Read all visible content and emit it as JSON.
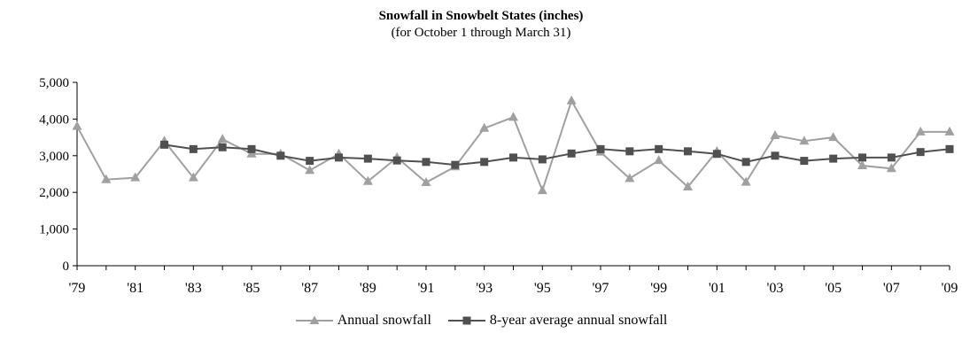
{
  "chart_data": {
    "type": "line",
    "title": "Snowfall in Snowbelt States (inches)",
    "subtitle": "(for October 1 through March 31)",
    "xlabel": "",
    "ylabel": "",
    "x": [
      1979,
      1980,
      1981,
      1982,
      1983,
      1984,
      1985,
      1986,
      1987,
      1988,
      1989,
      1990,
      1991,
      1992,
      1993,
      1994,
      1995,
      1996,
      1997,
      1998,
      1999,
      2000,
      2001,
      2002,
      2003,
      2004,
      2005,
      2006,
      2007,
      2008,
      2009
    ],
    "x_tick_labels": [
      "'79",
      "'81",
      "'83",
      "'85",
      "'87",
      "'89",
      "'91",
      "'93",
      "'95",
      "'97",
      "'99",
      "'01",
      "'03",
      "'05",
      "'07",
      "'09"
    ],
    "y_tick_labels": [
      "0",
      "1,000",
      "2,000",
      "3,000",
      "4,000",
      "5,000"
    ],
    "y_ticks": [
      0,
      1000,
      2000,
      3000,
      4000,
      5000
    ],
    "xlim": [
      1979,
      2009
    ],
    "ylim": [
      0,
      5000
    ],
    "grid": false,
    "legend_position": "bottom-center",
    "series": [
      {
        "name": "Annual snowfall",
        "marker": "triangle",
        "color": "#a0a0a0",
        "values": [
          3800,
          2350,
          2400,
          3400,
          2400,
          3450,
          3050,
          3050,
          2600,
          3050,
          2300,
          2950,
          2270,
          2700,
          3750,
          4050,
          2050,
          4500,
          3100,
          2380,
          2870,
          2150,
          3120,
          2280,
          3550,
          3400,
          3500,
          2730,
          2650,
          3650,
          3650
        ]
      },
      {
        "name": "8-year average annual snowfall",
        "marker": "square",
        "color": "#505050",
        "values": [
          null,
          null,
          null,
          3300,
          3180,
          3230,
          3180,
          3000,
          2860,
          2950,
          2920,
          2870,
          2830,
          2750,
          2830,
          2950,
          2900,
          3060,
          3180,
          3120,
          3180,
          3120,
          3050,
          2830,
          3000,
          2860,
          2920,
          2950,
          2950,
          3100,
          3180
        ]
      }
    ]
  }
}
